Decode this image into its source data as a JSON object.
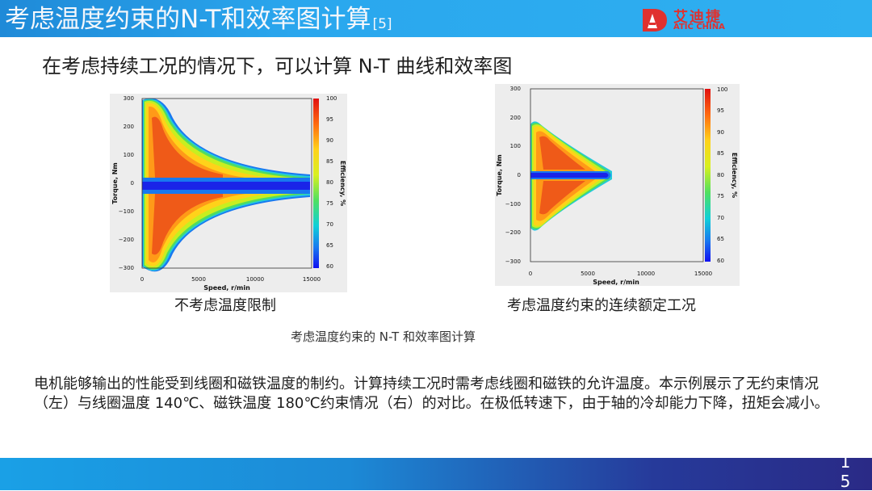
{
  "header": {
    "title": "考虑温度约束的N-T和效率图计算",
    "title_ref": "[5]",
    "logo": {
      "cn": "艾迪捷",
      "en": "ATIC CHINA",
      "color": "#e0312f"
    }
  },
  "subtitle": "在考虑持续工况的情况下，可以计算 N-T 曲线和效率图",
  "plots": {
    "left": {
      "caption": "不考虑温度限制",
      "xlabel": "Speed, r/min",
      "ylabel": "Torque, Nm",
      "colorbar_label": "Efficiency, %",
      "x_ticks": [
        "0",
        "5000",
        "10000",
        "15000"
      ],
      "y_ticks": [
        "300",
        "200",
        "100",
        "0",
        "−100",
        "−200",
        "−300"
      ],
      "cb_ticks": [
        "100",
        "95",
        "90",
        "85",
        "80",
        "75",
        "70",
        "65",
        "60"
      ]
    },
    "right": {
      "caption": "考虑温度约束的连续额定工况",
      "xlabel": "Speed, r/min",
      "ylabel": "Torque, Nm",
      "colorbar_label": "Efficiency, %",
      "x_ticks": [
        "0",
        "5000",
        "10000",
        "15000"
      ],
      "y_ticks": [
        "300",
        "200",
        "100",
        "0",
        "−100",
        "−200",
        "−300"
      ],
      "cb_ticks": [
        "100",
        "95",
        "90",
        "85",
        "80",
        "75",
        "70",
        "65",
        "60"
      ]
    }
  },
  "figure_caption": "考虑温度约束的 N-T 和效率图计算",
  "body_text": "电机能够输出的性能受到线圈和磁铁温度的制约。计算持续工况时需考虑线圈和磁铁的允许温度。本示例展示了无约束情况（左）与线圈温度 140℃、磁铁温度 180℃约束情况（右）的对比。在极低转速下，由于轴的冷却能力下降，扭矩会减小。",
  "page_number": "1\n5",
  "colors": {
    "title_bar": "#2aa7ee",
    "bottom_bar_dark": "#2a2a86",
    "efficiency_high": "#e8401c",
    "efficiency_low": "#1c2cf0"
  }
}
